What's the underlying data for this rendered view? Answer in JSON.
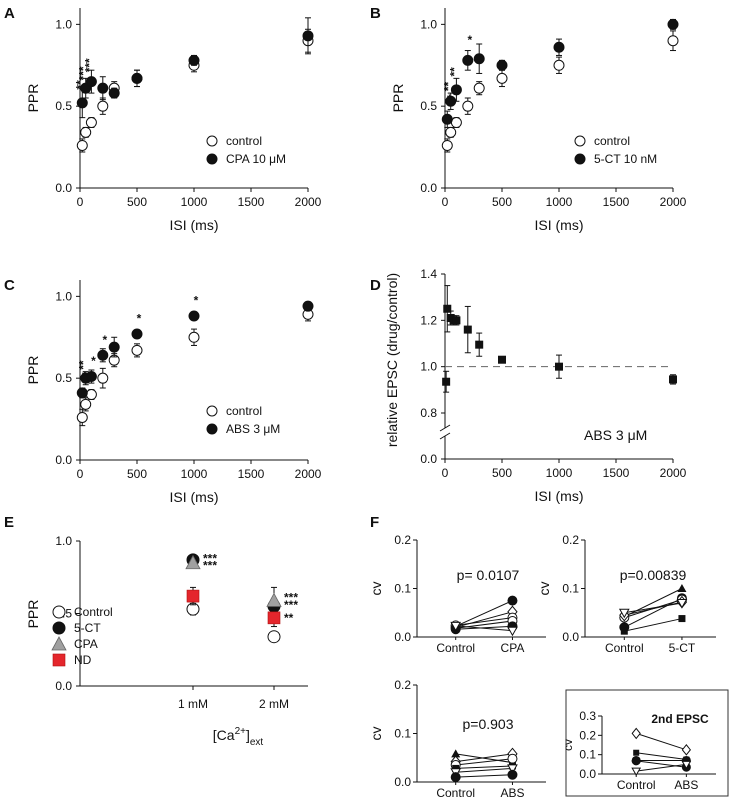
{
  "chart_data": [
    {
      "panel": "A",
      "type": "scatter",
      "xlabel": "ISI  (ms)",
      "ylabel": "PPR",
      "xlim": [
        0,
        2000
      ],
      "ylim": [
        0,
        1.1
      ],
      "xticks": [
        0,
        500,
        1000,
        1500,
        2000
      ],
      "yticks": [
        0.0,
        0.5,
        1.0
      ],
      "ytick_labels": [
        "0.0",
        "0.5",
        "1.0"
      ],
      "legend": [
        {
          "label": "control",
          "marker": "open-circle"
        },
        {
          "label": "CPA 10 μM",
          "marker": "filled-circle"
        }
      ],
      "series": [
        {
          "name": "control",
          "marker": "open-circle",
          "x": [
            20,
            50,
            100,
            200,
            300,
            500,
            1000,
            2000
          ],
          "y": [
            0.26,
            0.34,
            0.4,
            0.5,
            0.61,
            0.67,
            0.75,
            0.9
          ],
          "err": [
            0.04,
            0.03,
            0.03,
            0.05,
            0.04,
            0.05,
            0.04,
            0.07
          ]
        },
        {
          "name": "CPA 10 μM",
          "marker": "filled-circle",
          "x": [
            20,
            50,
            100,
            200,
            300,
            500,
            1000,
            2000
          ],
          "y": [
            0.52,
            0.61,
            0.65,
            0.61,
            0.58,
            0.67,
            0.78,
            0.93
          ],
          "err": [
            0.09,
            0.06,
            0.07,
            0.07,
            0.03,
            0.05,
            0.03,
            0.11
          ]
        }
      ],
      "annotations": [
        {
          "x": 20,
          "y": 0.63,
          "text": "**"
        },
        {
          "x": 50,
          "y": 0.7,
          "text": "***"
        },
        {
          "x": 100,
          "y": 0.75,
          "text": "***"
        }
      ]
    },
    {
      "panel": "B",
      "type": "scatter",
      "xlabel": "ISI  (ms)",
      "ylabel": "PPR",
      "xlim": [
        0,
        2000
      ],
      "ylim": [
        0,
        1.1
      ],
      "xticks": [
        0,
        500,
        1000,
        1500,
        2000
      ],
      "yticks": [
        0.0,
        0.5,
        1.0
      ],
      "ytick_labels": [
        "0.0",
        "0.5",
        "1.0"
      ],
      "legend": [
        {
          "label": "control",
          "marker": "open-circle"
        },
        {
          "label": "5-CT 10 nM",
          "marker": "filled-circle"
        }
      ],
      "series": [
        {
          "name": "control",
          "marker": "open-circle",
          "x": [
            20,
            50,
            100,
            200,
            300,
            500,
            1000,
            2000
          ],
          "y": [
            0.26,
            0.34,
            0.4,
            0.5,
            0.61,
            0.67,
            0.75,
            0.9
          ],
          "err": [
            0.04,
            0.03,
            0.03,
            0.05,
            0.04,
            0.05,
            0.05,
            0.06
          ]
        },
        {
          "name": "5-CT 10 nM",
          "marker": "filled-circle",
          "x": [
            20,
            50,
            100,
            200,
            300,
            500,
            1000,
            2000
          ],
          "y": [
            0.42,
            0.53,
            0.6,
            0.78,
            0.79,
            0.75,
            0.86,
            1.0
          ],
          "err": [
            0.05,
            0.05,
            0.07,
            0.06,
            0.09,
            0.03,
            0.05,
            0.03
          ]
        }
      ],
      "annotations": [
        {
          "x": 20,
          "y": 0.52,
          "text": "*"
        },
        {
          "x": 50,
          "y": 0.62,
          "text": "**"
        },
        {
          "x": 100,
          "y": 0.71,
          "text": "**"
        },
        {
          "x": 200,
          "y": 0.88,
          "text": "*"
        }
      ]
    },
    {
      "panel": "C",
      "type": "scatter",
      "xlabel": "ISI  (ms)",
      "ylabel": "PPR",
      "xlim": [
        0,
        2000
      ],
      "ylim": [
        0,
        1.1
      ],
      "xticks": [
        0,
        500,
        1000,
        1500,
        2000
      ],
      "yticks": [
        0.0,
        0.5,
        1.0
      ],
      "ytick_labels": [
        "0.0",
        "0.5",
        "1.0"
      ],
      "legend": [
        {
          "label": "control",
          "marker": "open-circle"
        },
        {
          "label": "ABS 3 μM",
          "marker": "filled-circle"
        }
      ],
      "series": [
        {
          "name": "control",
          "marker": "open-circle",
          "x": [
            20,
            50,
            100,
            200,
            300,
            500,
            1000,
            2000
          ],
          "y": [
            0.26,
            0.34,
            0.4,
            0.5,
            0.61,
            0.67,
            0.75,
            0.89
          ],
          "err": [
            0.05,
            0.04,
            0.03,
            0.06,
            0.04,
            0.04,
            0.05,
            0.04
          ]
        },
        {
          "name": "ABS 3 μM",
          "marker": "filled-circle",
          "x": [
            20,
            50,
            100,
            200,
            300,
            500,
            1000,
            2000
          ],
          "y": [
            0.41,
            0.5,
            0.51,
            0.64,
            0.69,
            0.77,
            0.88,
            0.94
          ],
          "err": [
            0.03,
            0.04,
            0.04,
            0.04,
            0.06,
            0.02,
            0.02,
            0.02
          ]
        }
      ],
      "annotations": [
        {
          "x": 20,
          "y": 0.49,
          "text": "*"
        },
        {
          "x": 50,
          "y": 0.58,
          "text": "**"
        },
        {
          "x": 100,
          "y": 0.58,
          "text": "*"
        },
        {
          "x": 200,
          "y": 0.71,
          "text": "*"
        },
        {
          "x": 500,
          "y": 0.84,
          "text": "*"
        },
        {
          "x": 1000,
          "y": 0.95,
          "text": "*"
        }
      ]
    },
    {
      "panel": "D",
      "type": "scatter",
      "xlabel": "ISI  (ms)",
      "ylabel": "relative EPSC (drug/control)",
      "xlim": [
        0,
        2000
      ],
      "ylim": [
        0.7,
        1.4
      ],
      "xticks": [
        0,
        500,
        1000,
        1500,
        2000
      ],
      "yticks": [
        0.8,
        1.0,
        1.2,
        1.4
      ],
      "ytick_labels": [
        "0.8",
        "1.0",
        "1.2",
        "1.4"
      ],
      "y_zero_label": "0.0",
      "reference_line": 1.0,
      "label": "ABS 3 μM",
      "series": [
        {
          "name": "ABS 3 μM",
          "marker": "filled-square",
          "x": [
            10,
            20,
            50,
            75,
            100,
            200,
            300,
            500,
            1000,
            2000
          ],
          "y": [
            0.935,
            1.25,
            1.21,
            1.2,
            1.2,
            1.16,
            1.095,
            1.03,
            1.0,
            0.945
          ],
          "err": [
            0.045,
            0.1,
            0.03,
            0.02,
            0.02,
            0.1,
            0.05,
            0.01,
            0.05,
            0.02
          ]
        }
      ]
    },
    {
      "panel": "E",
      "type": "scatter",
      "xlabel": "[Ca2+]ext",
      "ylabel": "PPR",
      "xlabel_parts": {
        "base": "[Ca",
        "sup": "2+",
        "close": "]",
        "sub": "ext"
      },
      "ylim": [
        0,
        1.0
      ],
      "yticks": [
        0.0,
        0.5,
        1.0
      ],
      "ytick_labels": [
        "0.0",
        "0.5",
        "1.0"
      ],
      "categories": [
        "1 mM",
        "2 mM"
      ],
      "legend": [
        {
          "label": "Control",
          "marker": "open-circle"
        },
        {
          "label": "5-CT",
          "marker": "filled-circle"
        },
        {
          "label": "CPA",
          "marker": "gray-triangle"
        },
        {
          "label": "ND",
          "marker": "red-square"
        }
      ],
      "series": [
        {
          "name": "Control",
          "marker": "open-circle",
          "values": [
            0.53,
            0.34
          ],
          "err": [
            0.04,
            0.02
          ]
        },
        {
          "name": "5-CT",
          "marker": "filled-circle",
          "values": [
            0.87,
            0.55
          ],
          "err": [
            0.03,
            0.04
          ]
        },
        {
          "name": "CPA",
          "marker": "gray-triangle",
          "values": [
            0.85,
            0.59
          ],
          "err": [
            0.03,
            0.09
          ]
        },
        {
          "name": "ND",
          "marker": "red-square",
          "values": [
            0.62,
            0.47
          ],
          "err": [
            0.06,
            0.06
          ]
        }
      ],
      "annotations": [
        {
          "category": 0,
          "y": 0.88,
          "text": "***"
        },
        {
          "category": 0,
          "y": 0.83,
          "text": "***"
        },
        {
          "category": 1,
          "y": 0.61,
          "text": "***"
        },
        {
          "category": 1,
          "y": 0.56,
          "text": "***"
        },
        {
          "category": 1,
          "y": 0.47,
          "text": "**"
        }
      ]
    },
    {
      "panel": "F1",
      "type": "line",
      "ylabel": "cv",
      "categories": [
        "Control",
        "CPA"
      ],
      "ylim": [
        0,
        0.2
      ],
      "yticks": [
        0.0,
        0.1,
        0.2
      ],
      "ytick_labels": [
        "0.0",
        "0.1",
        "0.2"
      ],
      "label": "p= 0.0107",
      "series": [
        {
          "marker": "filled-circle",
          "values": [
            0.022,
            0.075
          ]
        },
        {
          "marker": "open-diamond",
          "values": [
            0.02,
            0.052
          ]
        },
        {
          "marker": "open-circle",
          "values": [
            0.024,
            0.04
          ]
        },
        {
          "marker": "open-circle",
          "values": [
            0.018,
            0.033
          ]
        },
        {
          "marker": "filled-circle",
          "values": [
            0.016,
            0.022
          ]
        },
        {
          "marker": "open-triangle-down",
          "values": [
            0.023,
            0.013
          ]
        }
      ]
    },
    {
      "panel": "F2",
      "type": "line",
      "ylabel": "cv",
      "categories": [
        "Control",
        "5-CT"
      ],
      "ylim": [
        0,
        0.2
      ],
      "yticks": [
        0.0,
        0.1,
        0.2
      ],
      "ytick_labels": [
        "0.0",
        "0.1",
        "0.2"
      ],
      "label": "p=0.00839",
      "series": [
        {
          "marker": "filled-triangle",
          "values": [
            0.042,
            0.1
          ]
        },
        {
          "marker": "filled-circle",
          "values": [
            0.02,
            0.08
          ]
        },
        {
          "marker": "open-circle",
          "values": [
            0.04,
            0.077
          ]
        },
        {
          "marker": "open-diamond",
          "values": [
            0.045,
            0.072
          ]
        },
        {
          "marker": "open-triangle-down",
          "values": [
            0.05,
            0.07
          ]
        },
        {
          "marker": "filled-square",
          "values": [
            0.012,
            0.038
          ]
        }
      ]
    },
    {
      "panel": "F3",
      "type": "line",
      "ylabel": "cv",
      "categories": [
        "Control",
        "ABS"
      ],
      "ylim": [
        0,
        0.2
      ],
      "yticks": [
        0.0,
        0.1,
        0.2
      ],
      "ytick_labels": [
        "0.0",
        "0.1",
        "0.2"
      ],
      "label": "p=0.903",
      "series": [
        {
          "marker": "filled-triangle",
          "values": [
            0.058,
            0.04
          ]
        },
        {
          "marker": "open-diamond",
          "values": [
            0.042,
            0.058
          ]
        },
        {
          "marker": "open-circle",
          "values": [
            0.035,
            0.048
          ]
        },
        {
          "marker": "filled-square",
          "values": [
            0.028,
            0.033
          ]
        },
        {
          "marker": "open-triangle-down",
          "values": [
            0.02,
            0.028
          ]
        },
        {
          "marker": "filled-circle",
          "values": [
            0.01,
            0.015
          ]
        }
      ]
    },
    {
      "panel": "F4",
      "type": "line",
      "ylabel": "cv",
      "categories": [
        "Control",
        "ABS"
      ],
      "ylim": [
        0,
        0.3
      ],
      "yticks": [
        0.0,
        0.1,
        0.2,
        0.3
      ],
      "ytick_labels": [
        "0.0",
        "0.1",
        "0.2",
        "0.3"
      ],
      "label": "2nd EPSC",
      "series": [
        {
          "marker": "open-diamond",
          "values": [
            0.21,
            0.125
          ]
        },
        {
          "marker": "filled-square",
          "values": [
            0.11,
            0.075
          ]
        },
        {
          "marker": "filled-circle",
          "values": [
            0.07,
            0.07
          ]
        },
        {
          "marker": "filled-circle",
          "values": [
            0.068,
            0.035
          ]
        },
        {
          "marker": "open-triangle-down",
          "values": [
            0.015,
            0.05
          ]
        }
      ]
    }
  ]
}
